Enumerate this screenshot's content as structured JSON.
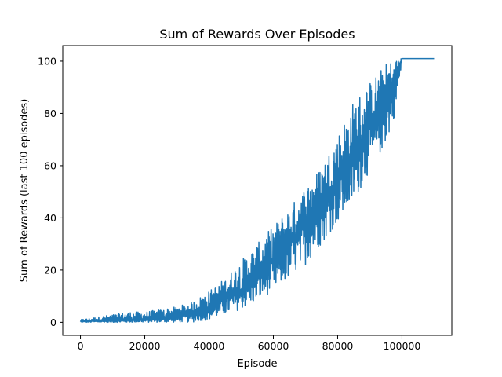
{
  "chart_data": {
    "type": "line",
    "title": "Sum of Rewards Over Episodes",
    "xlabel": "Episode",
    "ylabel": "Sum of Rewards (last 100 episodes)",
    "xlim": [
      -5500,
      115500
    ],
    "ylim": [
      -5,
      106
    ],
    "xticks": [
      0,
      20000,
      40000,
      60000,
      80000,
      100000
    ],
    "xtick_labels": [
      "0",
      "20000",
      "40000",
      "60000",
      "80000",
      "100000"
    ],
    "yticks": [
      0,
      20,
      40,
      60,
      80,
      100
    ],
    "ytick_labels": [
      "0",
      "20",
      "40",
      "60",
      "80",
      "100"
    ],
    "grid": false,
    "series": [
      {
        "color": "#1f77b4",
        "x": [
          0,
          5000,
          10000,
          15000,
          20000,
          25000,
          30000,
          35000,
          40000,
          45000,
          50000,
          55000,
          60000,
          65000,
          70000,
          75000,
          80000,
          85000,
          90000,
          95000,
          98000,
          99000,
          100000,
          105000,
          110000
        ],
        "y_mean": [
          0.3,
          0.5,
          0.6,
          0.8,
          1.0,
          1.3,
          2.0,
          3.5,
          5.5,
          8.5,
          12.5,
          17.5,
          23.0,
          29.5,
          37.0,
          45.0,
          54.0,
          63.0,
          73.0,
          84.0,
          92.0,
          97.0,
          101.0,
          101.0,
          101.0
        ],
        "y_min": [
          0,
          0,
          0,
          0,
          0,
          0,
          0,
          0,
          1,
          3,
          5,
          8,
          12,
          17,
          22,
          30,
          38,
          46,
          58,
          68,
          80,
          88,
          101,
          101,
          101
        ],
        "y_max": [
          1,
          2,
          3,
          4,
          4,
          5,
          6,
          8,
          12,
          17,
          24,
          30,
          37,
          44,
          52,
          60,
          72,
          85,
          92,
          99,
          101,
          101,
          101,
          101,
          101
        ]
      }
    ]
  }
}
